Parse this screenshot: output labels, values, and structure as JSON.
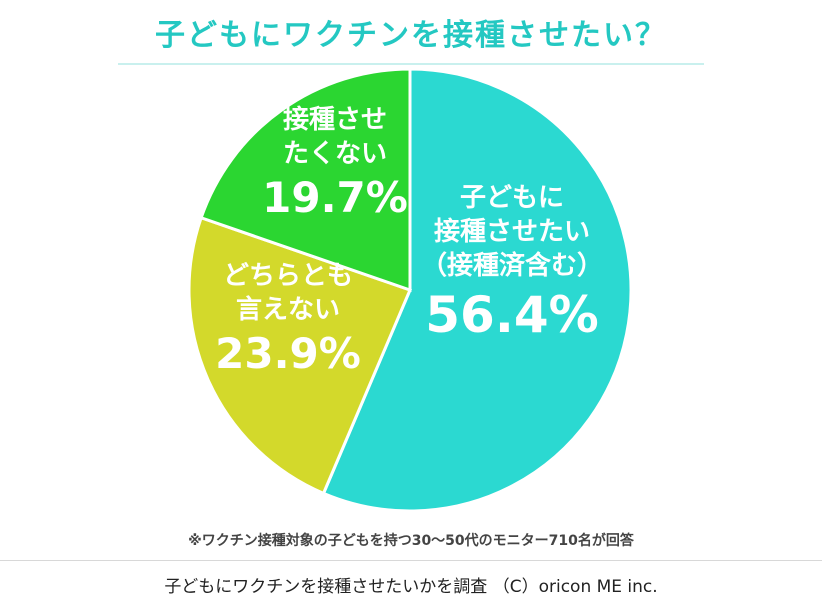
{
  "chart_data": {
    "type": "pie",
    "title": "子どもにワクチンを接種させたい？",
    "slices": [
      {
        "label_lines": [
          "子どもに",
          "接種させたい",
          "（接種済含む）"
        ],
        "value": 56.4,
        "value_label": "56.4%",
        "color": "#2bd9d1"
      },
      {
        "label_lines": [
          "どちらとも",
          "言えない"
        ],
        "value": 23.9,
        "value_label": "23.9%",
        "color": "#d3d92b"
      },
      {
        "label_lines": [
          "接種させ",
          "たくない"
        ],
        "value": 19.7,
        "value_label": "19.7%",
        "color": "#2bd631"
      }
    ],
    "start_angle_deg": 0,
    "direction": "clockwise"
  },
  "footnote": "※ワクチン接種対象の子どもを持つ30～50代のモニター710名が回答",
  "credit": "子どもにワクチンを接種させたいかを調査 （C）oricon ME inc."
}
